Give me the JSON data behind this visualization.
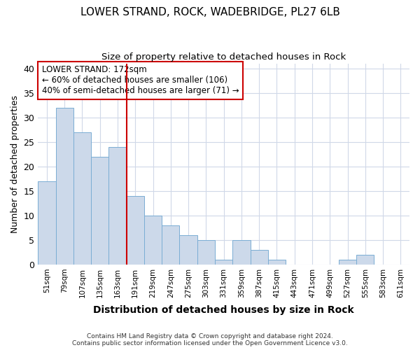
{
  "title1": "LOWER STRAND, ROCK, WADEBRIDGE, PL27 6LB",
  "title2": "Size of property relative to detached houses in Rock",
  "xlabel": "Distribution of detached houses by size in Rock",
  "ylabel": "Number of detached properties",
  "categories": [
    "51sqm",
    "79sqm",
    "107sqm",
    "135sqm",
    "163sqm",
    "191sqm",
    "219sqm",
    "247sqm",
    "275sqm",
    "303sqm",
    "331sqm",
    "359sqm",
    "387sqm",
    "415sqm",
    "443sqm",
    "471sqm",
    "499sqm",
    "527sqm",
    "555sqm",
    "583sqm",
    "611sqm"
  ],
  "values": [
    17,
    32,
    27,
    22,
    24,
    14,
    10,
    8,
    6,
    5,
    1,
    5,
    3,
    1,
    0,
    0,
    0,
    1,
    2,
    0,
    0
  ],
  "bar_color": "#ccd9ea",
  "bar_edge_color": "#7aadd4",
  "vline_color": "#cc0000",
  "vline_index": 4,
  "annotation_text": "LOWER STRAND: 172sqm\n← 60% of detached houses are smaller (106)\n40% of semi-detached houses are larger (71) →",
  "annotation_box_color": "#ffffff",
  "annotation_box_edge": "#cc0000",
  "ylim": [
    0,
    41
  ],
  "yticks": [
    0,
    5,
    10,
    15,
    20,
    25,
    30,
    35,
    40
  ],
  "footer": "Contains HM Land Registry data © Crown copyright and database right 2024.\nContains public sector information licensed under the Open Government Licence v3.0.",
  "background_color": "#ffffff",
  "plot_bg_color": "#ffffff",
  "grid_color": "#d0d8e8"
}
